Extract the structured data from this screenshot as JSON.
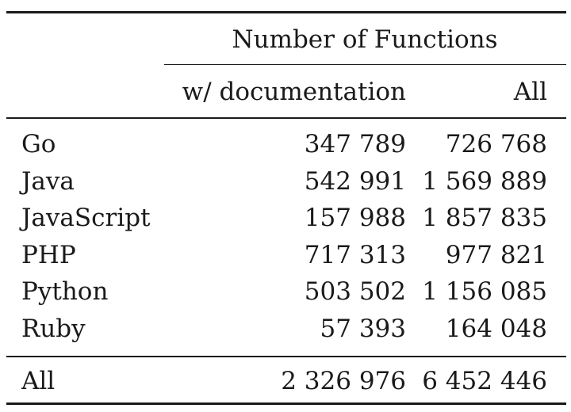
{
  "table": {
    "group_header": "Number of Functions",
    "columns": [
      "w/ documentation",
      "All"
    ],
    "rows": [
      {
        "label": "Go",
        "documented": "347 789",
        "all": "726 768"
      },
      {
        "label": "Java",
        "documented": "542 991",
        "all": "1 569 889"
      },
      {
        "label": "JavaScript",
        "documented": "157 988",
        "all": "1 857 835"
      },
      {
        "label": "PHP",
        "documented": "717 313",
        "all": "977 821"
      },
      {
        "label": "Python",
        "documented": "503 502",
        "all": "1 156 085"
      },
      {
        "label": "Ruby",
        "documented": "57 393",
        "all": "164 048"
      }
    ],
    "total": {
      "label": "All",
      "documented": "2 326 976",
      "all": "6 452 446"
    }
  }
}
